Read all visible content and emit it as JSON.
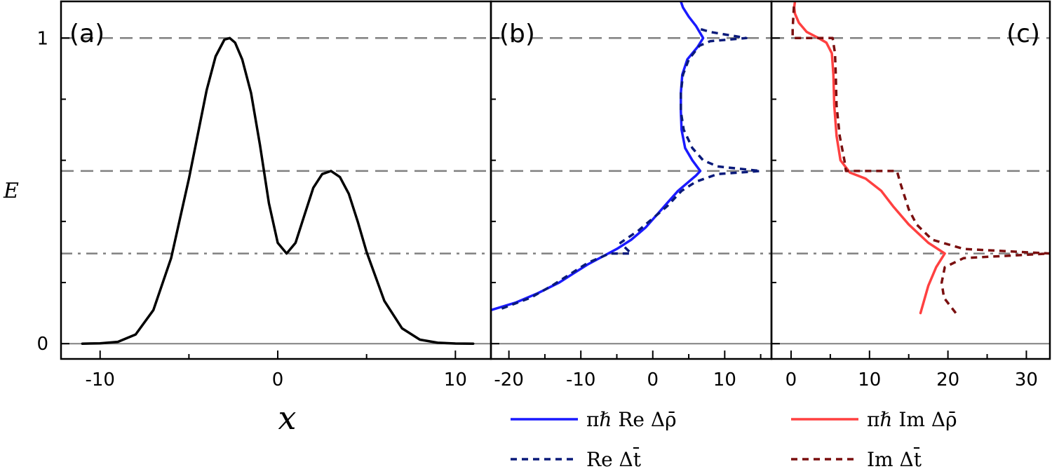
{
  "chart_data": [
    {
      "panel": "(a)",
      "type": "line",
      "xlabel": "x",
      "ylabel": "E",
      "xlim": [
        -12.2,
        12.0
      ],
      "ylim": [
        -0.05,
        1.12
      ],
      "xticks": [
        -10,
        0,
        10
      ],
      "xtick_labels": [
        "-10",
        "0",
        "10"
      ],
      "yticks": [
        0,
        1
      ],
      "ytick_labels": [
        "0",
        "1"
      ],
      "hlines": [
        {
          "y": 1.0,
          "style": "dashed"
        },
        {
          "y": 0.565,
          "style": "dashed"
        },
        {
          "y": 0.295,
          "style": "dashdot"
        },
        {
          "y": 0.0,
          "style": "solid"
        }
      ],
      "series": [
        {
          "color": "#000000",
          "x": [
            -11,
            -10,
            -9,
            -8,
            -7,
            -6,
            -5,
            -4,
            -3.5,
            -3,
            -2.7,
            -2.4,
            -2,
            -1.5,
            -1,
            -0.5,
            0,
            0.5,
            1,
            1.5,
            2,
            2.5,
            3,
            3.5,
            4,
            4.5,
            5,
            6,
            7,
            8,
            9,
            10,
            11
          ],
          "y": [
            0.0,
            0.001,
            0.006,
            0.03,
            0.11,
            0.28,
            0.54,
            0.83,
            0.94,
            0.995,
            1.0,
            0.985,
            0.93,
            0.82,
            0.65,
            0.46,
            0.33,
            0.295,
            0.33,
            0.42,
            0.51,
            0.555,
            0.565,
            0.545,
            0.49,
            0.4,
            0.3,
            0.14,
            0.05,
            0.013,
            0.003,
            0.0005,
            0.0
          ]
        }
      ]
    },
    {
      "panel": "(b)",
      "type": "line",
      "xlim": [
        -22.5,
        16.5
      ],
      "ylim": [
        -0.05,
        1.12
      ],
      "xticks": [
        -20,
        -10,
        0,
        10
      ],
      "xtick_labels": [
        "-20",
        "-10",
        "0",
        "10"
      ],
      "hlines": [
        {
          "y": 1.0,
          "style": "dashed"
        },
        {
          "y": 0.565,
          "style": "dashed"
        },
        {
          "y": 0.295,
          "style": "dashdot"
        },
        {
          "y": 0.0,
          "style": "solid"
        }
      ],
      "series": [
        {
          "name": "πℏ Re Δρ̄",
          "color": "#1a1aff",
          "style": "solid",
          "x": [
            -22.5,
            -19,
            -16,
            -13,
            -11,
            -9,
            -7,
            -5,
            -3,
            -1,
            0.5,
            2,
            3.5,
            5,
            6,
            6.6,
            5.5,
            4.5,
            4.0,
            3.9,
            3.9,
            4.1,
            4.8,
            6.2,
            7.0,
            6.0,
            5.0,
            4.2,
            3.9
          ],
          "y": [
            0.11,
            0.135,
            0.165,
            0.2,
            0.23,
            0.26,
            0.285,
            0.31,
            0.34,
            0.38,
            0.42,
            0.46,
            0.5,
            0.53,
            0.55,
            0.565,
            0.6,
            0.64,
            0.7,
            0.76,
            0.82,
            0.88,
            0.93,
            0.97,
            1.0,
            1.04,
            1.07,
            1.1,
            1.12
          ]
        },
        {
          "name": "Re Δt̄",
          "color": "#0a1a7a",
          "style": "dashed",
          "x": [
            -21,
            -17,
            -14,
            -11,
            -9,
            -6,
            -3,
            -4.5,
            -2,
            0,
            2,
            4,
            6,
            9,
            15,
            9,
            7,
            5.5,
            4.3,
            3.9,
            3.9,
            4.2,
            5,
            6.5,
            8,
            13,
            8,
            6.5
          ],
          "y": [
            0.115,
            0.15,
            0.19,
            0.235,
            0.265,
            0.295,
            0.295,
            0.33,
            0.37,
            0.41,
            0.45,
            0.5,
            0.53,
            0.555,
            0.565,
            0.58,
            0.6,
            0.64,
            0.7,
            0.76,
            0.82,
            0.88,
            0.93,
            0.975,
            0.99,
            1.0,
            1.02,
            1.03
          ]
        }
      ]
    },
    {
      "panel": "(c)",
      "type": "line",
      "xlim": [
        -2.5,
        33.0
      ],
      "ylim": [
        -0.05,
        1.12
      ],
      "xticks": [
        0,
        10,
        20,
        30
      ],
      "xtick_labels": [
        "0",
        "10",
        "20",
        "30"
      ],
      "hlines": [
        {
          "y": 1.0,
          "style": "dashed"
        },
        {
          "y": 0.565,
          "style": "dashed"
        },
        {
          "y": 0.295,
          "style": "dashdot"
        },
        {
          "y": 0.0,
          "style": "solid"
        }
      ],
      "series": [
        {
          "name": "πℏ Im Δρ̄",
          "color": "#ff4040",
          "style": "solid",
          "x": [
            16.5,
            17.5,
            18.5,
            19.6,
            17.5,
            15,
            13,
            11.5,
            9.5,
            7.5,
            6.3,
            5.8,
            5.5,
            5.4,
            5.2,
            4.5,
            3.5,
            2,
            1,
            0.5,
            0.4,
            0.5
          ],
          "y": [
            0.1,
            0.19,
            0.25,
            0.295,
            0.33,
            0.39,
            0.45,
            0.5,
            0.54,
            0.56,
            0.6,
            0.68,
            0.78,
            0.88,
            0.95,
            0.985,
            1.0,
            1.02,
            1.05,
            1.08,
            1.1,
            1.12
          ],
          "legend": true
        },
        {
          "name": "Im Δt̄",
          "color": "#7a0f0f",
          "style": "dashed",
          "x": [
            21,
            19.5,
            19.2,
            19.6,
            22,
            33,
            22,
            18,
            16,
            15,
            14,
            13.5,
            7,
            6.8,
            6.2,
            5.8,
            5.7,
            5.6,
            5.3,
            0.2,
            0.2,
            0.4
          ],
          "y": [
            0.1,
            0.15,
            0.2,
            0.25,
            0.28,
            0.295,
            0.31,
            0.34,
            0.39,
            0.44,
            0.52,
            0.565,
            0.565,
            0.6,
            0.68,
            0.78,
            0.88,
            0.95,
            1.0,
            1.0,
            1.03,
            1.12
          ]
        }
      ]
    }
  ],
  "legend": [
    {
      "label": "πℏ Re Δρ̄",
      "color": "#1a1aff",
      "style": "solid"
    },
    {
      "label": "Re Δt̄",
      "color": "#0a1a7a",
      "style": "dashed"
    },
    {
      "label": "πℏ Im Δρ̄",
      "color": "#ff4040",
      "style": "solid"
    },
    {
      "label": "Im Δt̄",
      "color": "#7a0f0f",
      "style": "dashed"
    }
  ],
  "colors": {
    "guide_lines": "#808080",
    "axes": "#000000"
  }
}
